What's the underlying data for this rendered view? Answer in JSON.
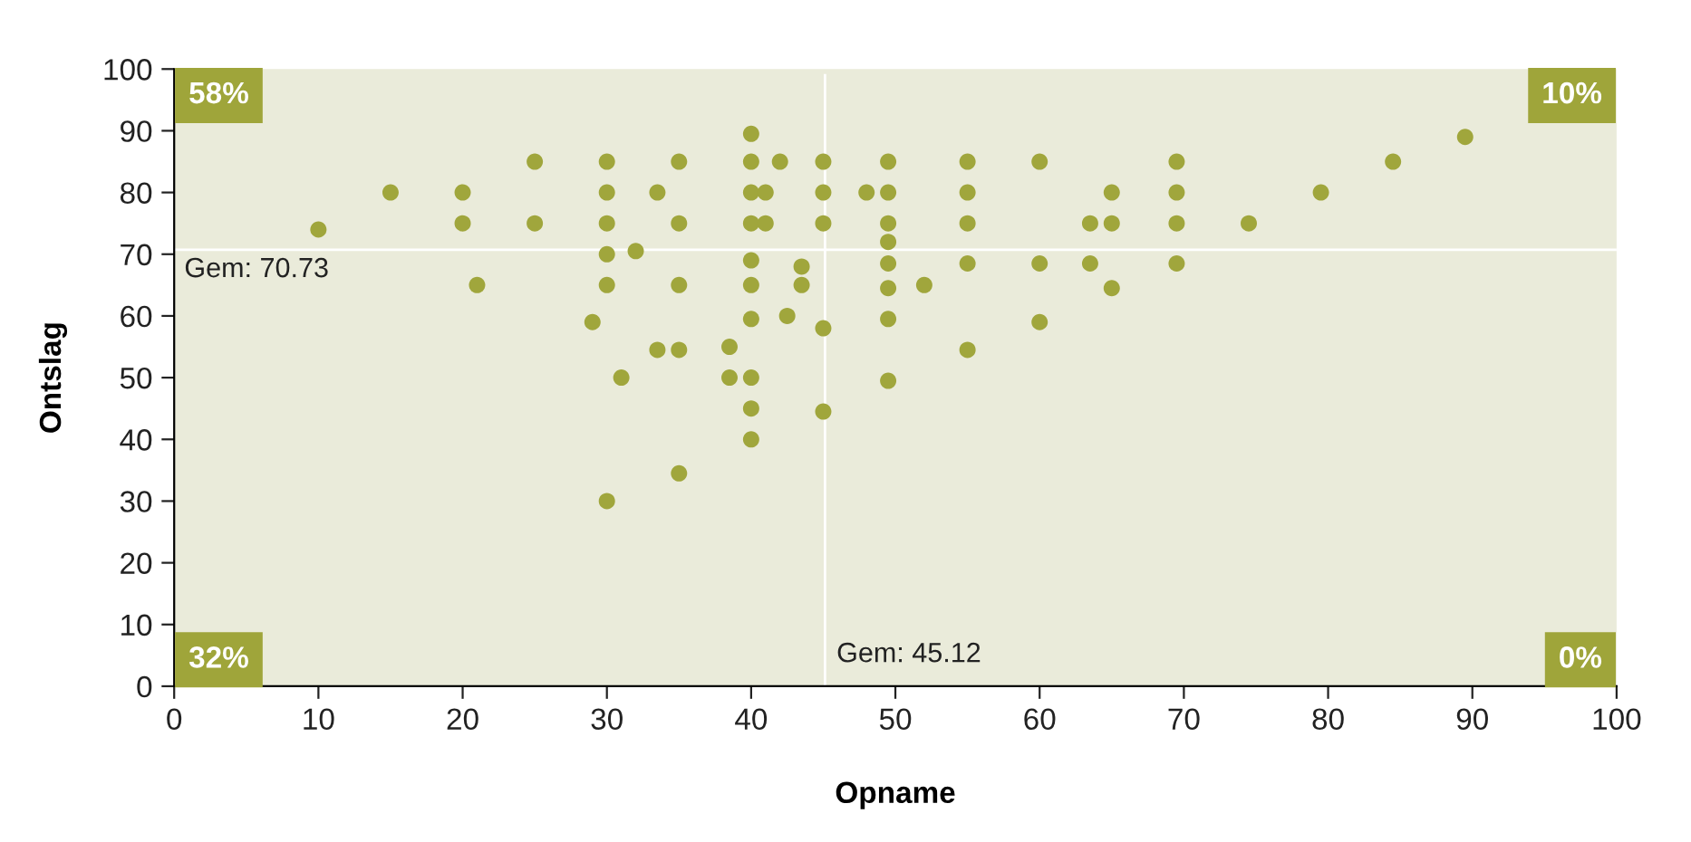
{
  "chart_data": {
    "type": "scatter",
    "xlabel": "Opname",
    "ylabel": "Ontslag",
    "x": [
      10,
      15,
      20,
      20,
      21,
      25,
      25,
      29,
      30,
      30,
      30,
      30,
      30,
      30,
      31,
      32,
      33.5,
      33.5,
      35,
      35,
      35,
      35,
      35,
      38.5,
      38.5,
      40,
      40,
      40,
      40,
      40,
      40,
      40,
      40,
      40,
      40,
      41,
      41,
      42,
      43.5,
      43.5,
      42.5,
      45,
      45,
      45,
      45,
      45,
      48,
      49.5,
      49.5,
      49.5,
      49.5,
      49.5,
      49.5,
      49.5,
      49.5,
      52,
      55,
      55,
      55,
      55,
      55,
      60,
      60,
      60,
      63.5,
      63.5,
      65,
      65,
      65,
      69.5,
      69.5,
      69.5,
      69.5,
      74.5,
      79.5,
      84.5,
      89.5
    ],
    "values": [
      74,
      80,
      80,
      75,
      65,
      85,
      75,
      59,
      85,
      80,
      75,
      70,
      65,
      30,
      50,
      70.5,
      80,
      54.5,
      85,
      75,
      65,
      54.5,
      34.5,
      55,
      50,
      89.5,
      85,
      80,
      75,
      69,
      65,
      59.5,
      50,
      45,
      40,
      80,
      75,
      85,
      68,
      65,
      60,
      85,
      80,
      75,
      58,
      44.5,
      80,
      85,
      80,
      75,
      72,
      68.5,
      64.5,
      59.5,
      49.5,
      65,
      85,
      80,
      75,
      68.5,
      54.5,
      85,
      68.5,
      59,
      75,
      68.5,
      80,
      75,
      64.5,
      85,
      80,
      75,
      68.5,
      75,
      80,
      85,
      89
    ],
    "color": "#a0a63c",
    "marker": "circle",
    "xlim": [
      0,
      100
    ],
    "ylim": [
      0,
      100
    ],
    "xticks": [
      0,
      10,
      20,
      30,
      40,
      50,
      60,
      70,
      80,
      90,
      100
    ],
    "yticks": [
      0,
      10,
      20,
      30,
      40,
      50,
      60,
      70,
      80,
      90,
      100
    ],
    "grid": false,
    "legend": false,
    "ref_lines": [
      {
        "axis": "y",
        "value": 70.73,
        "label": "Gem: 70.73",
        "color": "#ffffff"
      },
      {
        "axis": "x",
        "value": 45.12,
        "label": "Gem: 45.12",
        "color": "#ffffff"
      }
    ],
    "annotations": [
      "58%",
      "10%",
      "32%",
      "0%"
    ]
  }
}
